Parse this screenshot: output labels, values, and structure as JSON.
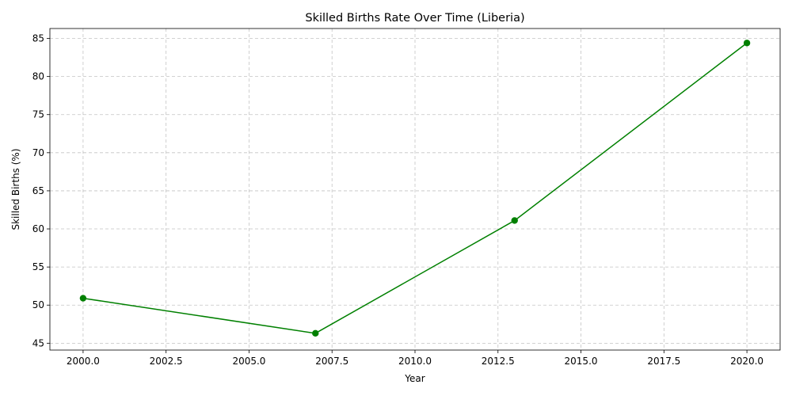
{
  "chart_data": {
    "type": "line",
    "title": "Skilled Births Rate Over Time (Liberia)",
    "xlabel": "Year",
    "ylabel": "Skilled Births (%)",
    "xlim": [
      1999.0,
      2021.0
    ],
    "ylim": [
      44.1,
      86.3
    ],
    "xticks": [
      2000.0,
      2002.5,
      2005.0,
      2007.5,
      2010.0,
      2012.5,
      2015.0,
      2017.5,
      2020.0
    ],
    "xtick_labels": [
      "2000.0",
      "2002.5",
      "2005.0",
      "2007.5",
      "2010.0",
      "2012.5",
      "2015.0",
      "2017.5",
      "2020.0"
    ],
    "yticks": [
      45,
      50,
      55,
      60,
      65,
      70,
      75,
      80,
      85
    ],
    "ytick_labels": [
      "45",
      "50",
      "55",
      "60",
      "65",
      "70",
      "75",
      "80",
      "85"
    ],
    "grid": true,
    "series": [
      {
        "color": "#008000",
        "marker": "circle",
        "x": [
          2000,
          2007,
          2013,
          2020
        ],
        "y": [
          50.9,
          46.3,
          61.1,
          84.4
        ]
      }
    ]
  }
}
